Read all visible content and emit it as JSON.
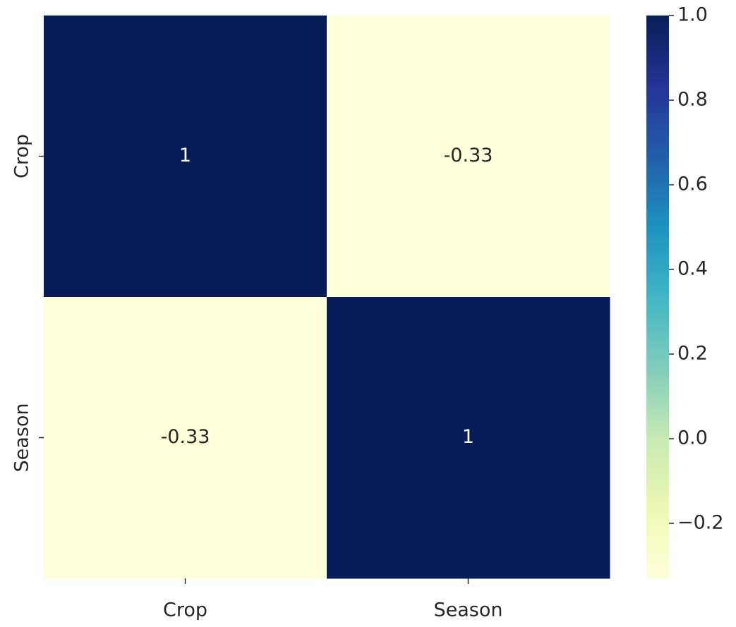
{
  "chart_data": {
    "type": "heatmap",
    "x_categories": [
      "Crop",
      "Season"
    ],
    "y_categories": [
      "Crop",
      "Season"
    ],
    "values": [
      [
        1,
        -0.33
      ],
      [
        -0.33,
        1
      ]
    ],
    "clim": [
      -0.33,
      1
    ],
    "cticks": [
      {
        "value": -0.2,
        "label": "−0.2"
      },
      {
        "value": 0,
        "label": "0.0"
      },
      0.2,
      0.4,
      0.6,
      0.8,
      {
        "value": 1,
        "label": "1.0"
      }
    ],
    "colormap": [
      "#ffffd9",
      "#edf8b1",
      "#c7e9b4",
      "#7fcdbb",
      "#41b6c4",
      "#1d91c0",
      "#225ea8",
      "#253494",
      "#081d58"
    ]
  }
}
